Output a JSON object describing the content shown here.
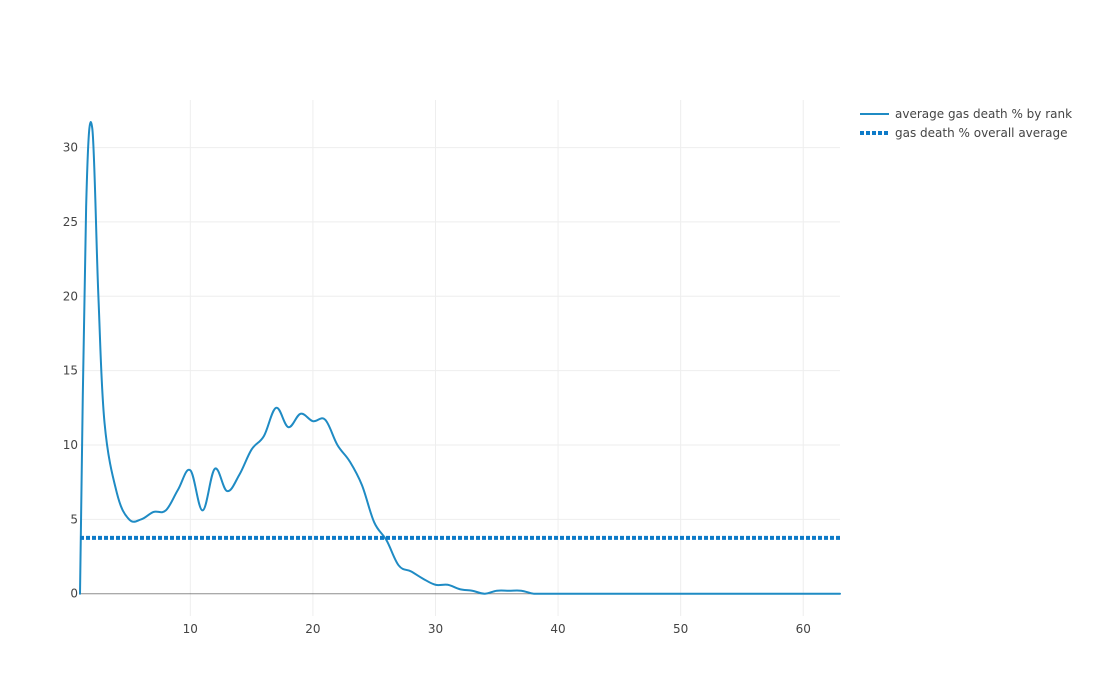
{
  "chart_data": {
    "type": "line",
    "title": "",
    "xlabel": "",
    "ylabel": "",
    "xlim": [
      1,
      63
    ],
    "ylim": [
      -1.5,
      33.2
    ],
    "x_ticks": [
      10,
      20,
      30,
      40,
      50,
      60
    ],
    "y_ticks": [
      0,
      5,
      10,
      15,
      20,
      25,
      30
    ],
    "grid": true,
    "legend_position": "top-right",
    "series": [
      {
        "name": "average gas death % by rank",
        "style": "solid",
        "color": "#1f8bc4",
        "x": [
          1,
          1.5,
          2,
          2.5,
          3,
          4,
          5,
          6,
          7,
          8,
          9,
          10,
          11,
          12,
          13,
          14,
          15,
          16,
          17,
          18,
          19,
          20,
          21,
          22,
          23,
          24,
          25,
          26,
          27,
          28,
          29,
          30,
          31,
          32,
          33,
          34,
          35,
          36,
          37,
          38,
          39,
          40,
          41,
          42,
          43,
          44,
          45,
          46,
          47,
          48,
          49,
          50,
          51,
          52,
          53,
          54,
          55,
          56,
          57,
          58,
          59,
          60,
          61,
          62,
          63
        ],
        "y": [
          0,
          26.0,
          31.3,
          20.0,
          11.5,
          6.8,
          5.0,
          5.0,
          5.5,
          5.6,
          7.0,
          8.3,
          5.6,
          8.4,
          6.9,
          8.0,
          9.7,
          10.6,
          12.5,
          11.2,
          12.1,
          11.6,
          11.7,
          10.0,
          8.9,
          7.3,
          4.8,
          3.6,
          1.9,
          1.5,
          1.0,
          0.6,
          0.6,
          0.3,
          0.2,
          0.0,
          0.2,
          0.2,
          0.2,
          0,
          0,
          0,
          0,
          0,
          0,
          0,
          0,
          0,
          0,
          0,
          0,
          0,
          0,
          0,
          0,
          0,
          0,
          0,
          0,
          0,
          0,
          0,
          0,
          0,
          0
        ]
      },
      {
        "name": "gas death % overall average",
        "style": "dotted",
        "color": "#0e7bc8",
        "x": [
          1,
          63
        ],
        "y": [
          3.75,
          3.75
        ]
      }
    ]
  },
  "colors": {
    "grid": "#eeeeee",
    "zero_line": "#444444",
    "text": "#444444"
  }
}
